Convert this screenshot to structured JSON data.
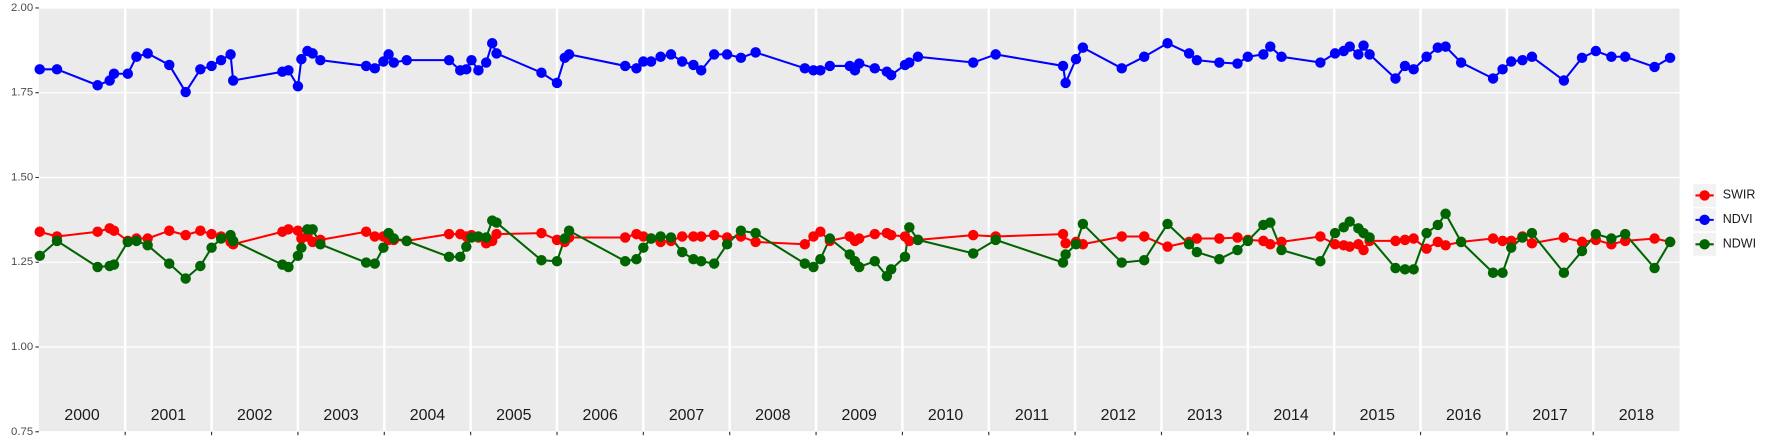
{
  "chart_data": {
    "type": "line",
    "year_labels": [
      "2000",
      "2001",
      "2002",
      "2003",
      "2004",
      "2005",
      "2006",
      "2007",
      "2008",
      "2009",
      "2010",
      "2011",
      "2012",
      "2013",
      "2014",
      "2015",
      "2016",
      "2017",
      "2018"
    ],
    "x": [
      2000.01,
      2000.21,
      2000.68,
      2000.82,
      2000.87,
      2001.03,
      2001.13,
      2001.26,
      2001.51,
      2001.7,
      2001.87,
      2002.0,
      2002.11,
      2002.22,
      2002.25,
      2002.82,
      2002.89,
      2003.0,
      2003.04,
      2003.11,
      2003.17,
      2003.26,
      2003.79,
      2003.89,
      2003.99,
      2004.05,
      2004.11,
      2004.26,
      2004.75,
      2004.88,
      2004.95,
      2005.01,
      2005.09,
      2005.18,
      2005.25,
      2005.3,
      2005.82,
      2006.0,
      2006.09,
      2006.14,
      2006.79,
      2006.92,
      2007.0,
      2007.09,
      2007.2,
      2007.32,
      2007.45,
      2007.58,
      2007.67,
      2007.82,
      2007.97,
      2008.13,
      2008.3,
      2008.87,
      2008.97,
      2009.05,
      2009.16,
      2009.39,
      2009.45,
      2009.5,
      2009.68,
      2009.82,
      2009.87,
      2010.03,
      2010.08,
      2010.18,
      2010.82,
      2011.08,
      2011.86,
      2011.89,
      2012.01,
      2012.09,
      2012.54,
      2012.8,
      2013.07,
      2013.32,
      2013.41,
      2013.67,
      2013.88,
      2014.0,
      2014.18,
      2014.26,
      2014.39,
      2014.84,
      2015.01,
      2015.11,
      2015.18,
      2015.28,
      2015.34,
      2015.41,
      2015.71,
      2015.82,
      2015.92,
      2016.07,
      2016.2,
      2016.29,
      2016.47,
      2016.84,
      2016.95,
      2017.05,
      2017.18,
      2017.29,
      2017.66,
      2017.87,
      2018.03,
      2018.21,
      2018.37,
      2018.71,
      2018.89
    ],
    "series": [
      {
        "name": "SWIR",
        "color": "#ff0000",
        "values": [
          1.34,
          1.326,
          1.34,
          1.35,
          1.343,
          1.313,
          1.32,
          1.32,
          1.343,
          1.33,
          1.343,
          1.333,
          1.326,
          1.31,
          1.303,
          1.34,
          1.347,
          1.343,
          1.32,
          1.326,
          1.31,
          1.316,
          1.34,
          1.326,
          1.326,
          1.316,
          1.316,
          1.313,
          1.333,
          1.333,
          1.326,
          1.33,
          1.323,
          1.306,
          1.313,
          1.333,
          1.336,
          1.316,
          1.31,
          1.323,
          1.323,
          1.333,
          1.326,
          1.32,
          1.31,
          1.313,
          1.326,
          1.326,
          1.326,
          1.33,
          1.323,
          1.326,
          1.31,
          1.303,
          1.326,
          1.34,
          1.313,
          1.326,
          1.313,
          1.32,
          1.333,
          1.336,
          1.33,
          1.326,
          1.313,
          1.316,
          1.33,
          1.326,
          1.333,
          1.306,
          1.31,
          1.303,
          1.326,
          1.326,
          1.296,
          1.31,
          1.32,
          1.32,
          1.323,
          1.316,
          1.313,
          1.303,
          1.31,
          1.326,
          1.303,
          1.3,
          1.296,
          1.303,
          1.286,
          1.313,
          1.313,
          1.316,
          1.32,
          1.29,
          1.31,
          1.3,
          1.31,
          1.32,
          1.313,
          1.313,
          1.326,
          1.306,
          1.323,
          1.31,
          1.316,
          1.303,
          1.313,
          1.32,
          1.31
        ]
      },
      {
        "name": "NDVI",
        "color": "#0000ff",
        "values": [
          1.819,
          1.819,
          1.772,
          1.786,
          1.806,
          1.806,
          1.856,
          1.866,
          1.832,
          1.752,
          1.819,
          1.829,
          1.846,
          1.863,
          1.786,
          1.812,
          1.816,
          1.769,
          1.849,
          1.873,
          1.866,
          1.846,
          1.829,
          1.822,
          1.842,
          1.863,
          1.839,
          1.846,
          1.846,
          1.816,
          1.819,
          1.846,
          1.816,
          1.839,
          1.896,
          1.866,
          1.809,
          1.779,
          1.853,
          1.863,
          1.829,
          1.822,
          1.842,
          1.842,
          1.856,
          1.863,
          1.842,
          1.832,
          1.816,
          1.863,
          1.863,
          1.853,
          1.869,
          1.822,
          1.816,
          1.816,
          1.829,
          1.829,
          1.816,
          1.836,
          1.822,
          1.812,
          1.802,
          1.832,
          1.839,
          1.856,
          1.839,
          1.863,
          1.829,
          1.779,
          1.849,
          1.883,
          1.822,
          1.856,
          1.896,
          1.866,
          1.846,
          1.839,
          1.836,
          1.856,
          1.863,
          1.886,
          1.856,
          1.839,
          1.866,
          1.873,
          1.886,
          1.863,
          1.889,
          1.863,
          1.792,
          1.829,
          1.819,
          1.856,
          1.883,
          1.886,
          1.839,
          1.792,
          1.819,
          1.842,
          1.846,
          1.856,
          1.786,
          1.853,
          1.873,
          1.856,
          1.856,
          1.826,
          1.853
        ]
      },
      {
        "name": "NDWI",
        "color": "#006400",
        "values": [
          1.269,
          1.313,
          1.236,
          1.239,
          1.243,
          1.31,
          1.313,
          1.3,
          1.246,
          1.202,
          1.239,
          1.293,
          1.32,
          1.33,
          1.313,
          1.243,
          1.236,
          1.269,
          1.293,
          1.347,
          1.347,
          1.303,
          1.249,
          1.246,
          1.293,
          1.336,
          1.32,
          1.313,
          1.266,
          1.266,
          1.296,
          1.323,
          1.326,
          1.323,
          1.373,
          1.367,
          1.256,
          1.253,
          1.32,
          1.343,
          1.253,
          1.259,
          1.293,
          1.32,
          1.326,
          1.323,
          1.28,
          1.259,
          1.253,
          1.246,
          1.303,
          1.343,
          1.336,
          1.246,
          1.236,
          1.259,
          1.32,
          1.273,
          1.253,
          1.236,
          1.253,
          1.209,
          1.229,
          1.266,
          1.353,
          1.316,
          1.276,
          1.316,
          1.249,
          1.273,
          1.303,
          1.363,
          1.249,
          1.256,
          1.363,
          1.303,
          1.28,
          1.259,
          1.286,
          1.313,
          1.36,
          1.367,
          1.286,
          1.253,
          1.336,
          1.353,
          1.37,
          1.35,
          1.336,
          1.323,
          1.233,
          1.229,
          1.229,
          1.336,
          1.36,
          1.393,
          1.31,
          1.219,
          1.219,
          1.293,
          1.323,
          1.336,
          1.219,
          1.283,
          1.333,
          1.32,
          1.333,
          1.233,
          1.31
        ]
      }
    ],
    "xlim": [
      2000,
      2019
    ],
    "xticks": [
      2001,
      2002,
      2003,
      2004,
      2005,
      2006,
      2007,
      2008,
      2009,
      2010,
      2011,
      2012,
      2013,
      2014,
      2015,
      2016,
      2017,
      2018
    ],
    "ylim": [
      0.75,
      2.0
    ],
    "yticks": [
      {
        "value": 0.75,
        "label": "0.75"
      },
      {
        "value": 1.0,
        "label": "1.00"
      },
      {
        "value": 1.25,
        "label": "1.25"
      },
      {
        "value": 1.5,
        "label": "1.50"
      },
      {
        "value": 1.75,
        "label": "1.75"
      },
      {
        "value": 2.0,
        "label": "2.00"
      }
    ],
    "grid": true,
    "legend": "right"
  }
}
